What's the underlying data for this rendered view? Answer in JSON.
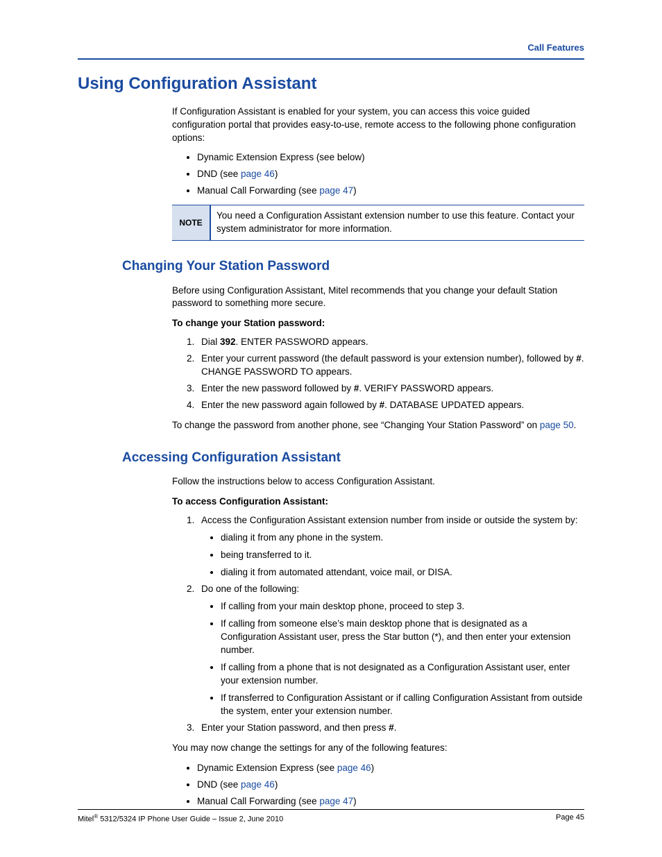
{
  "colors": {
    "primary": "#1a4ba0",
    "note_bg": "#d6e0ef",
    "text": "#000000",
    "page_bg": "#ffffff"
  },
  "header": {
    "section": "Call Features"
  },
  "h1": "Using Configuration Assistant",
  "intro": "If Configuration Assistant is enabled for your system, you can access this voice guided configuration portal that provides easy-to-use, remote access to the following phone configuration options:",
  "intro_bullets": {
    "b1": "Dynamic Extension Express (see below)",
    "b2_pre": "DND (see ",
    "b2_link": "page 46",
    "b2_post": ")",
    "b3_pre": "Manual Call Forwarding (see ",
    "b3_link": "page 47",
    "b3_post": ")"
  },
  "note": {
    "label": "NOTE",
    "text": "You need a Configuration Assistant extension number to use this feature. Contact your system administrator for more information."
  },
  "s1": {
    "title": "Changing Your Station Password",
    "intro": "Before using Configuration Assistant, Mitel recommends that you change your default Station password to something more secure.",
    "proc_head": "To change your Station password:",
    "step1_a": "Dial ",
    "step1_b": "392",
    "step1_c": ". ENTER PASSWORD appears.",
    "step2_a": "Enter your current password (the default password is your extension number), followed by ",
    "step2_b": "#",
    "step2_c": ". CHANGE PASSWORD TO appears.",
    "step3_a": "Enter the new password followed by ",
    "step3_b": "#",
    "step3_c": ". VERIFY PASSWORD appears.",
    "step4_a": "Enter the new password again followed by ",
    "step4_b": "#",
    "step4_c": ". DATABASE UPDATED appears.",
    "after_a": "To change the password from another phone, see “Changing Your Station Password” on ",
    "after_link": "page 50",
    "after_b": "."
  },
  "s2": {
    "title": "Accessing Configuration Assistant",
    "intro": "Follow the instructions below to access Configuration Assistant.",
    "proc_head": "To access Configuration Assistant:",
    "step1": "Access the Configuration Assistant extension number from inside or outside the system by:",
    "step1_b1": "dialing it from any phone in the system.",
    "step1_b2": "being transferred to it.",
    "step1_b3": "dialing it from automated attendant, voice mail, or DISA.",
    "step2": "Do one of the following:",
    "step2_b1": "If calling from your main desktop phone, proceed to step 3.",
    "step2_b2": "If calling from someone else’s main desktop phone that is designated as a Configuration Assistant user, press the Star button (*), and then enter your extension number.",
    "step2_b3": "If calling from a phone that is not designated as a Configuration Assistant user, enter your extension number.",
    "step2_b4": "If transferred to Configuration Assistant or if calling Configuration Assistant from outside the system, enter your extension number.",
    "step3_a": "Enter your Station password, and then press ",
    "step3_b": "#",
    "step3_c": ".",
    "after": "You may now change the settings for any of the following features:",
    "fb1_pre": "Dynamic Extension Express (see ",
    "fb1_link": "page 46",
    "fb1_post": ")",
    "fb2_pre": "DND (see ",
    "fb2_link": "page 46",
    "fb2_post": ")",
    "fb3_pre": "Manual Call Forwarding (see ",
    "fb3_link": "page 47",
    "fb3_post": ")"
  },
  "footer": {
    "left_a": "Mitel",
    "left_sup": "®",
    "left_b": " 5312/5324 IP Phone User Guide  – Issue 2, June 2010",
    "right": "Page 45"
  }
}
